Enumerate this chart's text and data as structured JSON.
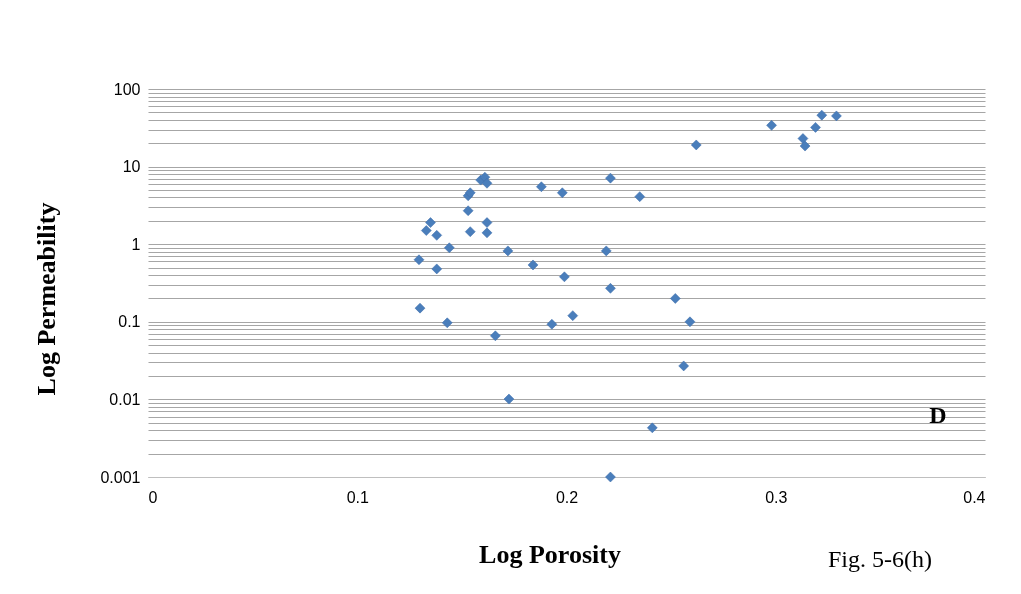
{
  "chart_data": {
    "type": "scatter",
    "xlabel": "Log  Porosity",
    "ylabel": "Log Permeability",
    "x": [
      0.1295,
      0.13,
      0.133,
      0.135,
      0.138,
      0.138,
      0.143,
      0.144,
      0.153,
      0.153,
      0.154,
      0.154,
      0.159,
      0.161,
      0.162,
      0.162,
      0.162,
      0.166,
      0.172,
      0.1725,
      0.184,
      0.188,
      0.193,
      0.198,
      0.199,
      0.203,
      0.219,
      0.221,
      0.221,
      0.221,
      0.235,
      0.241,
      0.252,
      0.256,
      0.259,
      0.262,
      0.298,
      0.313,
      0.314,
      0.319,
      0.322,
      0.329
    ],
    "series": [
      {
        "color": "#4a7ebb",
        "values": [
          0.63,
          0.15,
          1.5,
          1.9,
          1.3,
          0.48,
          0.097,
          0.9,
          2.7,
          4.2,
          4.6,
          1.45,
          6.7,
          7.3,
          6.1,
          1.9,
          1.4,
          0.066,
          0.82,
          0.0101,
          0.54,
          5.5,
          0.093,
          4.6,
          0.38,
          0.12,
          0.82,
          7.1,
          0.27,
          0.001,
          4.1,
          0.0043,
          0.2,
          0.027,
          0.1,
          19,
          34,
          23,
          18.4,
          32,
          46,
          45
        ]
      }
    ],
    "marker": "diamond",
    "log": "y",
    "grid": "y",
    "xlim": [
      0,
      0.4
    ],
    "xticks": [
      0,
      0.1,
      0.2,
      0.3,
      0.4
    ],
    "ylim": [
      0.001,
      100
    ],
    "yticks": [
      0.001,
      {
        "value": 0.002,
        "label": null
      },
      {
        "value": 0.003,
        "label": null
      },
      {
        "value": 0.004,
        "label": null
      },
      {
        "value": 0.005,
        "label": null
      },
      {
        "value": 0.006,
        "label": null
      },
      {
        "value": 0.007,
        "label": null
      },
      {
        "value": 0.008,
        "label": null
      },
      {
        "value": 0.009,
        "label": null
      },
      0.01,
      {
        "value": 0.02,
        "label": null
      },
      {
        "value": 0.03,
        "label": null
      },
      {
        "value": 0.04,
        "label": null
      },
      {
        "value": 0.05,
        "label": null
      },
      {
        "value": 0.06,
        "label": null
      },
      {
        "value": 0.07,
        "label": null
      },
      {
        "value": 0.08,
        "label": null
      },
      {
        "value": 0.09,
        "label": null
      },
      0.1,
      {
        "value": 0.2,
        "label": null
      },
      {
        "value": 0.3,
        "label": null
      },
      {
        "value": 0.4,
        "label": null
      },
      {
        "value": 0.5,
        "label": null
      },
      {
        "value": 0.6,
        "label": null
      },
      {
        "value": 0.7,
        "label": null
      },
      {
        "value": 0.8,
        "label": null
      },
      {
        "value": 0.9,
        "label": null
      },
      1,
      {
        "value": 2,
        "label": null
      },
      {
        "value": 3,
        "label": null
      },
      {
        "value": 4,
        "label": null
      },
      {
        "value": 5,
        "label": null
      },
      {
        "value": 6,
        "label": null
      },
      {
        "value": 7,
        "label": null
      },
      {
        "value": 8,
        "label": null
      },
      {
        "value": 9,
        "label": null
      },
      10,
      {
        "value": 20,
        "label": null
      },
      {
        "value": 30,
        "label": null
      },
      {
        "value": 40,
        "label": null
      },
      {
        "value": 50,
        "label": null
      },
      {
        "value": 60,
        "label": null
      },
      {
        "value": 70,
        "label": null
      },
      {
        "value": 80,
        "label": null
      },
      {
        "value": 90,
        "label": null
      },
      100
    ],
    "annotations": [
      "D",
      "Fig. 5-6(h)"
    ]
  }
}
